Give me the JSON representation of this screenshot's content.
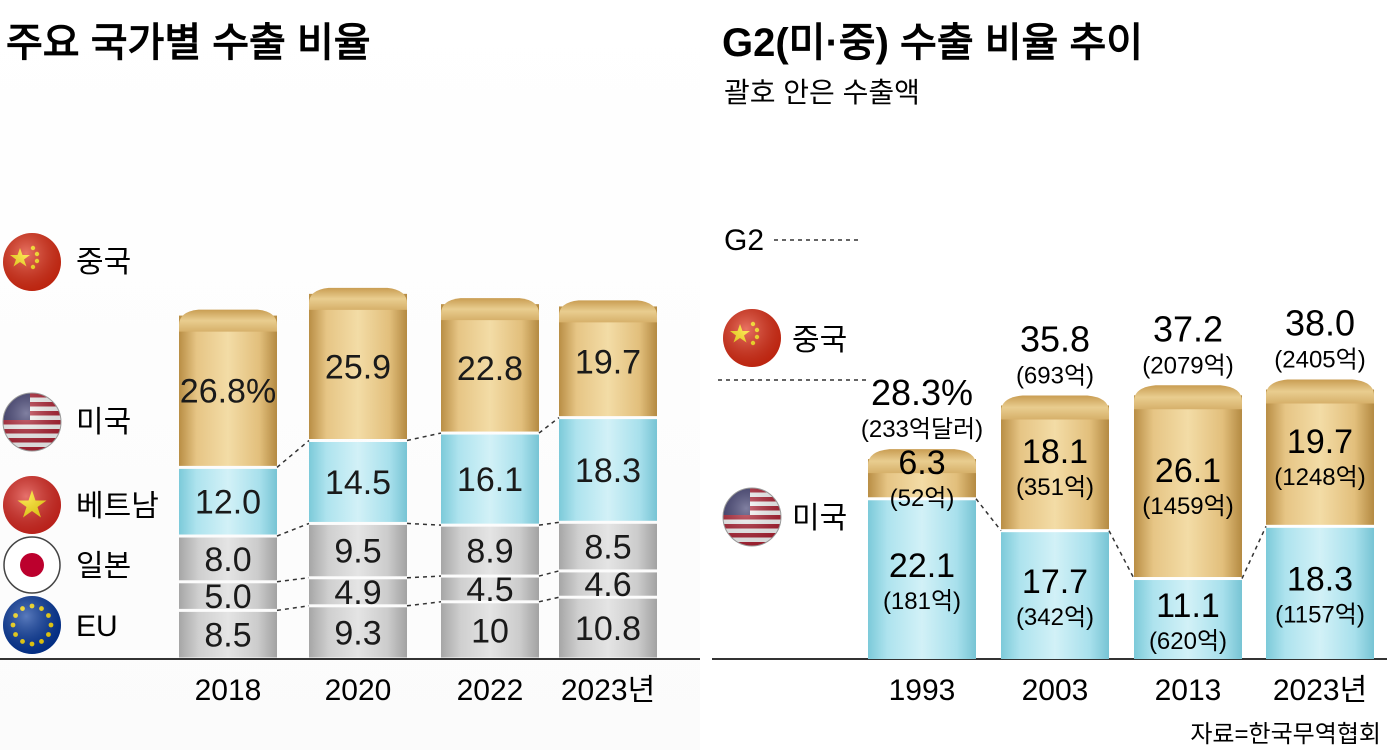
{
  "left": {
    "title": "주요 국가별 수출 비율",
    "countries": [
      "중국",
      "미국",
      "베트남",
      "일본",
      "EU"
    ],
    "categories": [
      "2018",
      "2020",
      "2022",
      "2023년"
    ]
  },
  "right": {
    "title": "G2(미·중) 수출 비율 추이",
    "subtitle": "괄호 안은 수출액",
    "g2_label": "G2",
    "countries": [
      "중국",
      "미국"
    ],
    "categories": [
      "1993",
      "2003",
      "2013",
      "2023년"
    ]
  },
  "source": "자료=한국무역협회",
  "colors": {
    "china": "#d9b36e",
    "us": "#a9e0ec",
    "other": "#c9c9c9",
    "china_flag": "#de2910",
    "star": "#ffde00",
    "eu_blue": "#003399"
  },
  "chart_data": [
    {
      "type": "bar",
      "stacked": true,
      "title": "주요 국가별 수출 비율",
      "categories": [
        "2018",
        "2020",
        "2022",
        "2023년"
      ],
      "series": [
        {
          "name": "EU",
          "values": [
            8.5,
            9.3,
            10,
            10.8
          ],
          "labels": [
            "8.5",
            "9.3",
            "10",
            "10.8"
          ]
        },
        {
          "name": "일본",
          "values": [
            5.0,
            4.9,
            4.5,
            4.6
          ],
          "labels": [
            "5.0",
            "4.9",
            "4.5",
            "4.6"
          ]
        },
        {
          "name": "베트남",
          "values": [
            8.0,
            9.5,
            8.9,
            8.5
          ],
          "labels": [
            "8.0",
            "9.5",
            "8.9",
            "8.5"
          ]
        },
        {
          "name": "미국",
          "values": [
            12.0,
            14.5,
            16.1,
            18.3
          ],
          "labels": [
            "12.0",
            "14.5",
            "16.1",
            "18.3"
          ]
        },
        {
          "name": "중국",
          "values": [
            26.8,
            25.9,
            22.8,
            19.7
          ],
          "labels": [
            "26.8%",
            "25.9",
            "22.8",
            "19.7"
          ]
        }
      ]
    },
    {
      "type": "bar",
      "stacked": true,
      "title": "G2(미·중) 수출 비율 추이",
      "subtitle": "괄호 안은 수출액",
      "categories": [
        "1993",
        "2003",
        "2013",
        "2023년"
      ],
      "series": [
        {
          "name": "미국",
          "values": [
            22.1,
            17.7,
            11.1,
            18.3
          ],
          "labels": [
            "22.1",
            "17.7",
            "11.1",
            "18.3"
          ],
          "amounts": [
            "(181억)",
            "(342억)",
            "(620억)",
            "(1157억)"
          ]
        },
        {
          "name": "중국",
          "values": [
            6.3,
            18.1,
            26.1,
            19.7
          ],
          "labels": [
            "6.3",
            "18.1",
            "26.1",
            "19.7"
          ],
          "amounts": [
            "(52억)",
            "(351억)",
            "(1459억)",
            "(1248억)"
          ]
        }
      ],
      "totals": {
        "name": "G2",
        "values": [
          28.3,
          35.8,
          37.2,
          38.0
        ],
        "labels": [
          "28.3%",
          "35.8",
          "37.2",
          "38.0"
        ],
        "amounts": [
          "(233억달러)",
          "(693억)",
          "(2079억)",
          "(2405억)"
        ]
      }
    }
  ]
}
